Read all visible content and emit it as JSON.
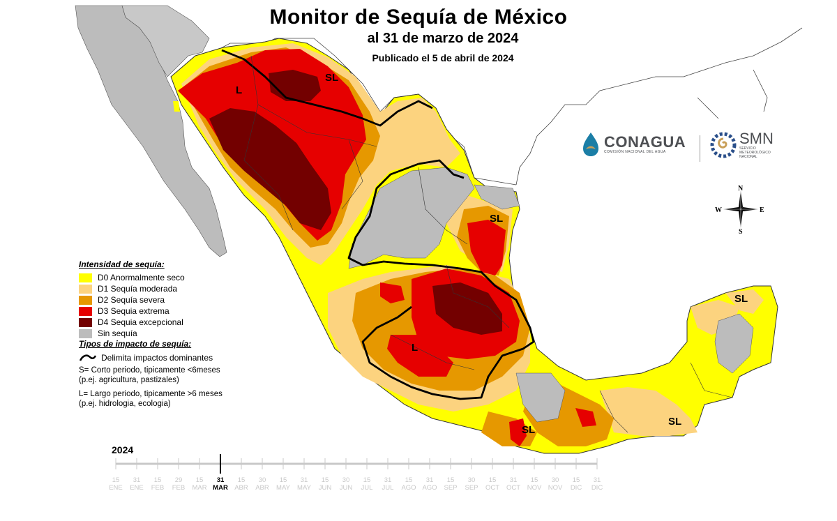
{
  "title": "Monitor de Sequía de México",
  "subtitle": "al 31 de marzo de 2024",
  "published": "Publicado el 5 de abril de 2024",
  "legend": {
    "intensity_title": "Intensidad de sequía:",
    "items": [
      {
        "label": "D0 Anormalmente seco",
        "color": "#ffff00"
      },
      {
        "label": "D1 Sequía moderada",
        "color": "#fcd37f"
      },
      {
        "label": "D2 Sequía severa",
        "color": "#e69800"
      },
      {
        "label": "D3 Sequia extrema",
        "color": "#e60000"
      },
      {
        "label": "D4 Sequia excepcional",
        "color": "#730000"
      },
      {
        "label": "Sin sequía",
        "color": "#bcbcbc"
      }
    ],
    "impact_title": "Tipos de impacto de sequía:",
    "impact_line": "Delimita impactos dominantes",
    "short_term": "S= Corto periodo, tipicamente <6meses\n(p.ej. agricultura, pastizales)",
    "long_term": "L= Largo periodo, tipicamente >6 meses\n(p.ej. hidrologia, ecologia)"
  },
  "map_labels": [
    "L",
    "SL",
    "SL",
    "L",
    "SL",
    "SL",
    "SL"
  ],
  "logos": {
    "conagua_name": "CONAGUA",
    "conagua_sub": "COMISIÓN NACIONAL DEL AGUA",
    "smn_name": "SMN",
    "smn_sub": "SERVICIO METEOROLÓGICO NACIONAL"
  },
  "compass": {
    "n": "N",
    "s": "S",
    "e": "E",
    "w": "W"
  },
  "timeline": {
    "year": "2024",
    "ticks": [
      {
        "day": "15",
        "month": "ENE"
      },
      {
        "day": "31",
        "month": "ENE"
      },
      {
        "day": "15",
        "month": "FEB"
      },
      {
        "day": "29",
        "month": "FEB"
      },
      {
        "day": "15",
        "month": "MAR"
      },
      {
        "day": "31",
        "month": "MAR"
      },
      {
        "day": "15",
        "month": "ABR"
      },
      {
        "day": "30",
        "month": "ABR"
      },
      {
        "day": "15",
        "month": "MAY"
      },
      {
        "day": "31",
        "month": "MAY"
      },
      {
        "day": "15",
        "month": "JUN"
      },
      {
        "day": "30",
        "month": "JUN"
      },
      {
        "day": "15",
        "month": "JUL"
      },
      {
        "day": "31",
        "month": "JUL"
      },
      {
        "day": "15",
        "month": "AGO"
      },
      {
        "day": "31",
        "month": "AGO"
      },
      {
        "day": "15",
        "month": "SEP"
      },
      {
        "day": "30",
        "month": "SEP"
      },
      {
        "day": "15",
        "month": "OCT"
      },
      {
        "day": "31",
        "month": "OCT"
      },
      {
        "day": "15",
        "month": "NOV"
      },
      {
        "day": "30",
        "month": "NOV"
      },
      {
        "day": "15",
        "month": "DIC"
      },
      {
        "day": "31",
        "month": "DIC"
      }
    ],
    "active_index": 5
  }
}
